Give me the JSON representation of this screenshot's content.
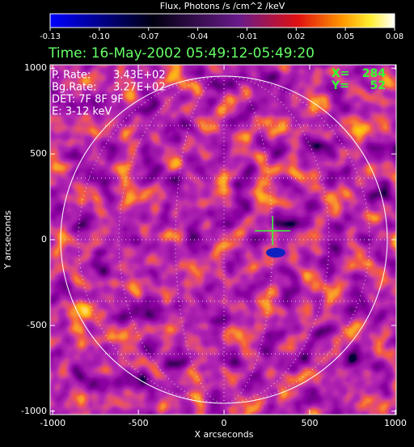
{
  "chart_data": {
    "type": "image",
    "colorbar": {
      "label": "Flux, Photons /s /cm^2 /keV",
      "lim": [
        -0.13,
        0.08
      ],
      "ticks": [
        -0.13,
        {
          "value": -0.1,
          "label": "-0.10"
        },
        -0.07,
        -0.04,
        -0.01,
        0.02,
        0.05,
        0.08
      ]
    },
    "title": "Time: 16-May-2002 05:49:12-05:49:20",
    "xlabel": "X arcseconds",
    "ylabel": "Y arcseconds",
    "xlim": [
      -1015,
      1005
    ],
    "xticks": [
      -1000,
      -500,
      0,
      500,
      1000
    ],
    "ylim": [
      -1020,
      1020
    ],
    "yticks": [
      -1000,
      -500,
      0,
      500,
      1000
    ],
    "rates": [
      {
        "label": "P. Rate:",
        "value": "3.43E+02"
      },
      {
        "label": "Bg.Rate:",
        "value": "3.27E+02"
      }
    ],
    "det": "DET: 7F 8F 9F",
    "energy": "E: 3-12 keV",
    "cursor": {
      "x_label": "X=",
      "x": 284,
      "y_label": "Y=",
      "y": 52,
      "color": "#33ff33"
    }
  }
}
